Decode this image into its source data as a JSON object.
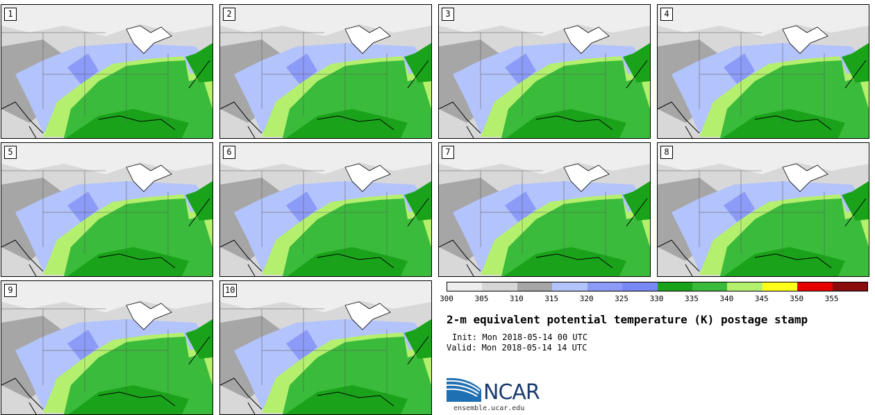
{
  "figure": {
    "title": "2-m equivalent potential temperature (K) postage stamp",
    "init": "Init: Mon 2018-05-14 00 UTC",
    "valid": "Valid: Mon 2018-05-14 14 UTC",
    "logo_text": "NCAR",
    "site": "ensemble.ucar.edu"
  },
  "members": [
    {
      "label": "1"
    },
    {
      "label": "2"
    },
    {
      "label": "3"
    },
    {
      "label": "4"
    },
    {
      "label": "5"
    },
    {
      "label": "6"
    },
    {
      "label": "7"
    },
    {
      "label": "8"
    },
    {
      "label": "9"
    },
    {
      "label": "10"
    }
  ],
  "colorbar": {
    "levels": [
      "300",
      "305",
      "310",
      "315",
      "320",
      "325",
      "330",
      "335",
      "340",
      "345",
      "350",
      "355"
    ],
    "colors": [
      "#ededed",
      "#d6d6d6",
      "#a6a6a6",
      "#b3c3fb",
      "#8c9bf7",
      "#7888f5",
      "#1aa31a",
      "#3bbb3b",
      "#b4f06e",
      "#ffff1a",
      "#e60000",
      "#8a0c0c"
    ]
  },
  "map_colors": {
    "cold": "#d8d8d8",
    "grey": "#a6a6a6",
    "lightgrey": "#eeeeee",
    "lightblue": "#b3c3fb",
    "blue": "#8c9bf7",
    "green_dark": "#1aa31a",
    "green": "#3bbb3b",
    "lime": "#b4f06e",
    "white": "#ffffff"
  }
}
